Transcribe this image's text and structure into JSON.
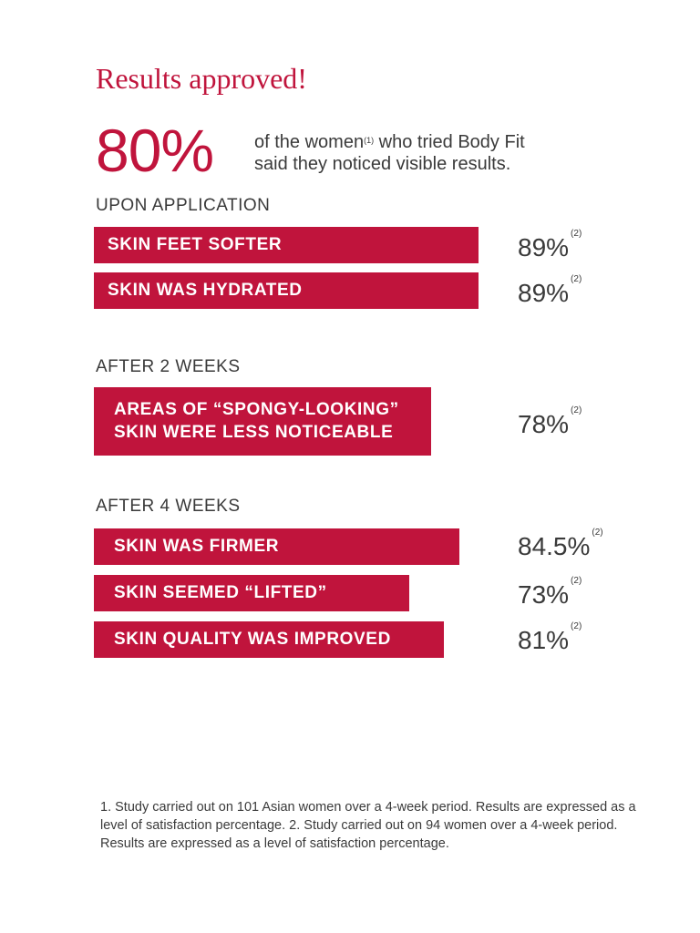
{
  "header": {
    "title": "Results approved!",
    "headline_pct": "80%",
    "lead_line1_before": "of the women",
    "lead_sup": "(1)",
    "lead_line1_after": " who tried Body Fit",
    "lead_line2": "said they noticed visible results."
  },
  "colors": {
    "accent": "#c0143c",
    "text": "#3a3a3a"
  },
  "chart_data": {
    "type": "bar",
    "orientation": "horizontal",
    "groups": [
      {
        "label": "UPON APPLICATION",
        "items": [
          {
            "label": "SKIN FEET SOFTER",
            "value": 89,
            "value_text": "89%",
            "note": "(2)"
          },
          {
            "label": "SKIN WAS HYDRATED",
            "value": 89,
            "value_text": "89%",
            "note": "(2)"
          }
        ]
      },
      {
        "label": "AFTER 2 WEEKS",
        "items": [
          {
            "label": "AREAS OF “SPONGY-LOOKING” SKIN WERE LESS NOTICEABLE",
            "label_lines": [
              "AREAS OF “SPONGY-LOOKING”",
              "SKIN WERE LESS NOTICEABLE"
            ],
            "value": 78,
            "value_text": "78%",
            "note": "(2)"
          }
        ]
      },
      {
        "label": "AFTER 4 WEEKS",
        "items": [
          {
            "label": "SKIN WAS FIRMER",
            "value": 84.5,
            "value_text": "84.5%",
            "note": "(2)"
          },
          {
            "label": "SKIN SEEMED “LIFTED”",
            "value": 73,
            "value_text": "73%",
            "note": "(2)"
          },
          {
            "label": "SKIN QUALITY WAS IMPROVED",
            "value": 81,
            "value_text": "81%",
            "note": "(2)"
          }
        ]
      }
    ]
  },
  "footnote": "1. Study carried out on 101 Asian women over a 4-week period. Results are expressed as a level of satisfaction percentage. 2. Study carried out on 94 women over a 4-week period. Results are expressed as a level of satisfaction percentage."
}
